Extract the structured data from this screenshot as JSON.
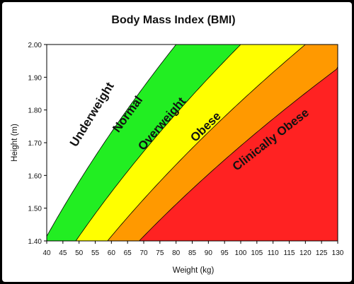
{
  "chart_data": {
    "type": "area",
    "title": "Body Mass Index (BMI)",
    "xlabel": "Weight (kg)",
    "ylabel": "Height (m)",
    "xlim": [
      40,
      130
    ],
    "ylim": [
      1.4,
      2.0
    ],
    "xticks": [
      "40",
      "45",
      "50",
      "55",
      "60",
      "65",
      "70",
      "75",
      "80",
      "85",
      "90",
      "95",
      "100",
      "105",
      "110",
      "115",
      "120",
      "125",
      "130"
    ],
    "yticks": [
      "1.40",
      "1.50",
      "1.60",
      "1.70",
      "1.80",
      "1.90",
      "2.00"
    ],
    "grid": false,
    "bmi_boundaries": [
      20,
      25,
      30,
      35
    ],
    "zones": [
      {
        "label": "Underweight",
        "bmi_min": 0,
        "bmi_max": 20,
        "color": "#ffffff"
      },
      {
        "label": "Normal",
        "bmi_min": 20,
        "bmi_max": 25,
        "color": "#22ee22"
      },
      {
        "label": "Overweight",
        "bmi_min": 25,
        "bmi_max": 30,
        "color": "#ffff00"
      },
      {
        "label": "Obese",
        "bmi_min": 30,
        "bmi_max": 35,
        "color": "#ff9900"
      },
      {
        "label": "Clinically Obese",
        "bmi_min": 35,
        "bmi_max": 99,
        "color": "#ff2222"
      }
    ],
    "zone_label_positions": [
      {
        "label": "Underweight",
        "x": 55,
        "y": 1.78
      },
      {
        "label": "Normal",
        "x": 66,
        "y": 1.78
      },
      {
        "label": "Overweight",
        "x": 76.5,
        "y": 1.75
      },
      {
        "label": "Obese",
        "x": 90,
        "y": 1.74
      },
      {
        "label": "Clinically Obese",
        "x": 110,
        "y": 1.7
      }
    ]
  }
}
